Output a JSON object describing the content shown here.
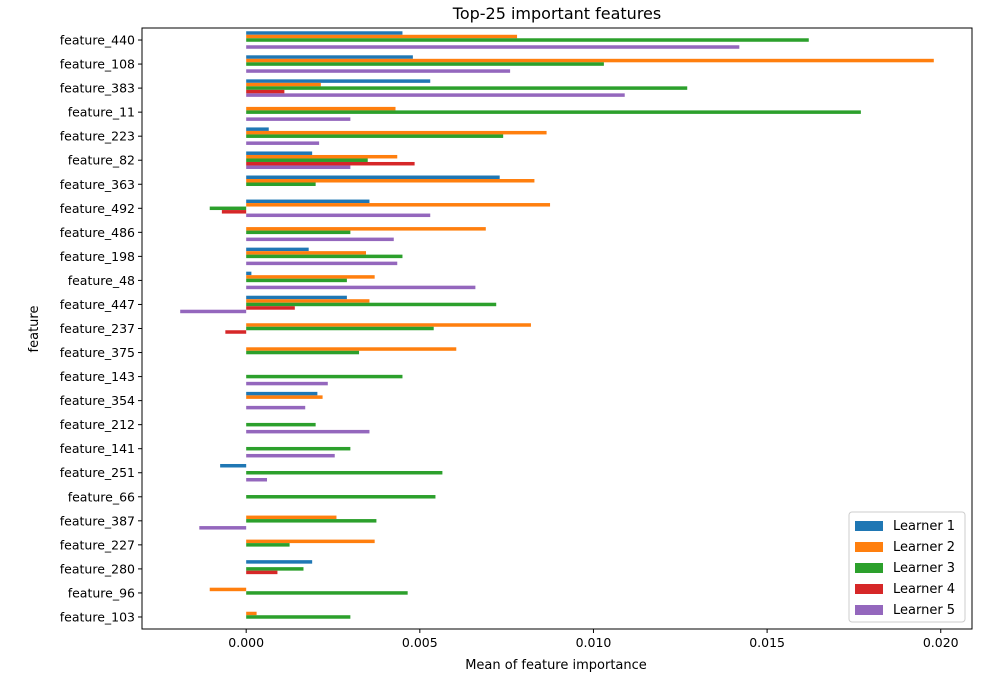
{
  "chart_data": {
    "type": "bar",
    "orientation": "horizontal",
    "title": "Top-25 important features",
    "xlabel": "Mean of feature importance",
    "ylabel": "feature",
    "xlim": [
      -0.003,
      0.0209
    ],
    "xticks": [
      0.0,
      0.005,
      0.01,
      0.015,
      0.02
    ],
    "xtick_labels": [
      "0.000",
      "0.005",
      "0.010",
      "0.015",
      "0.020"
    ],
    "legend_position": "bottom-right",
    "categories": [
      "feature_440",
      "feature_108",
      "feature_383",
      "feature_11",
      "feature_223",
      "feature_82",
      "feature_363",
      "feature_492",
      "feature_486",
      "feature_198",
      "feature_48",
      "feature_447",
      "feature_237",
      "feature_375",
      "feature_143",
      "feature_354",
      "feature_212",
      "feature_141",
      "feature_251",
      "feature_66",
      "feature_387",
      "feature_227",
      "feature_280",
      "feature_96",
      "feature_103"
    ],
    "series": [
      {
        "name": "Learner 1",
        "color": "#1f77b4",
        "values": [
          0.0045,
          0.0048,
          0.0053,
          0.0,
          0.00065,
          0.0019,
          0.0073,
          0.00355,
          0.0,
          0.0018,
          0.00015,
          0.0029,
          0.0,
          0.0,
          0.0,
          0.00205,
          0.0,
          0.0,
          -0.00075,
          0.0,
          0.0,
          0.0,
          0.0019,
          0.0,
          0.0
        ]
      },
      {
        "name": "Learner 2",
        "color": "#ff7f0e",
        "values": [
          0.0078,
          0.0198,
          0.00215,
          0.0043,
          0.00865,
          0.00435,
          0.0083,
          0.00875,
          0.0069,
          0.00345,
          0.0037,
          0.00355,
          0.0082,
          0.00605,
          0.0,
          0.0022,
          0.0,
          0.0,
          0.0,
          0.0,
          0.0026,
          0.0037,
          0.0,
          -0.00105,
          0.0003
        ]
      },
      {
        "name": "Learner 3",
        "color": "#2ca02c",
        "values": [
          0.0162,
          0.0103,
          0.0127,
          0.0177,
          0.0074,
          0.0035,
          0.002,
          -0.00105,
          0.003,
          0.0045,
          0.0029,
          0.0072,
          0.0054,
          0.00325,
          0.0045,
          0.0,
          0.002,
          0.003,
          0.00565,
          0.00545,
          0.00375,
          0.00125,
          0.00165,
          0.00465,
          0.003
        ]
      },
      {
        "name": "Learner 4",
        "color": "#d62728",
        "values": [
          0.0,
          0.0,
          0.0011,
          0.0,
          0.0,
          0.00485,
          0.0,
          -0.0007,
          0.0,
          0.0,
          0.0,
          0.0014,
          -0.0006,
          0.0,
          0.0,
          0.0,
          0.0,
          0.0,
          0.0,
          0.0,
          0.0,
          0.0,
          0.0009,
          0.0,
          0.0
        ]
      },
      {
        "name": "Learner 5",
        "color": "#9467bd",
        "values": [
          0.0142,
          0.0076,
          0.0109,
          0.003,
          0.0021,
          0.003,
          0.0,
          0.0053,
          0.00425,
          0.00435,
          0.0066,
          -0.0019,
          0.0,
          0.0,
          0.00235,
          0.0017,
          0.00355,
          0.00255,
          0.0006,
          0.0,
          -0.00135,
          0.0,
          0.0,
          0.0,
          0.0
        ]
      }
    ]
  }
}
